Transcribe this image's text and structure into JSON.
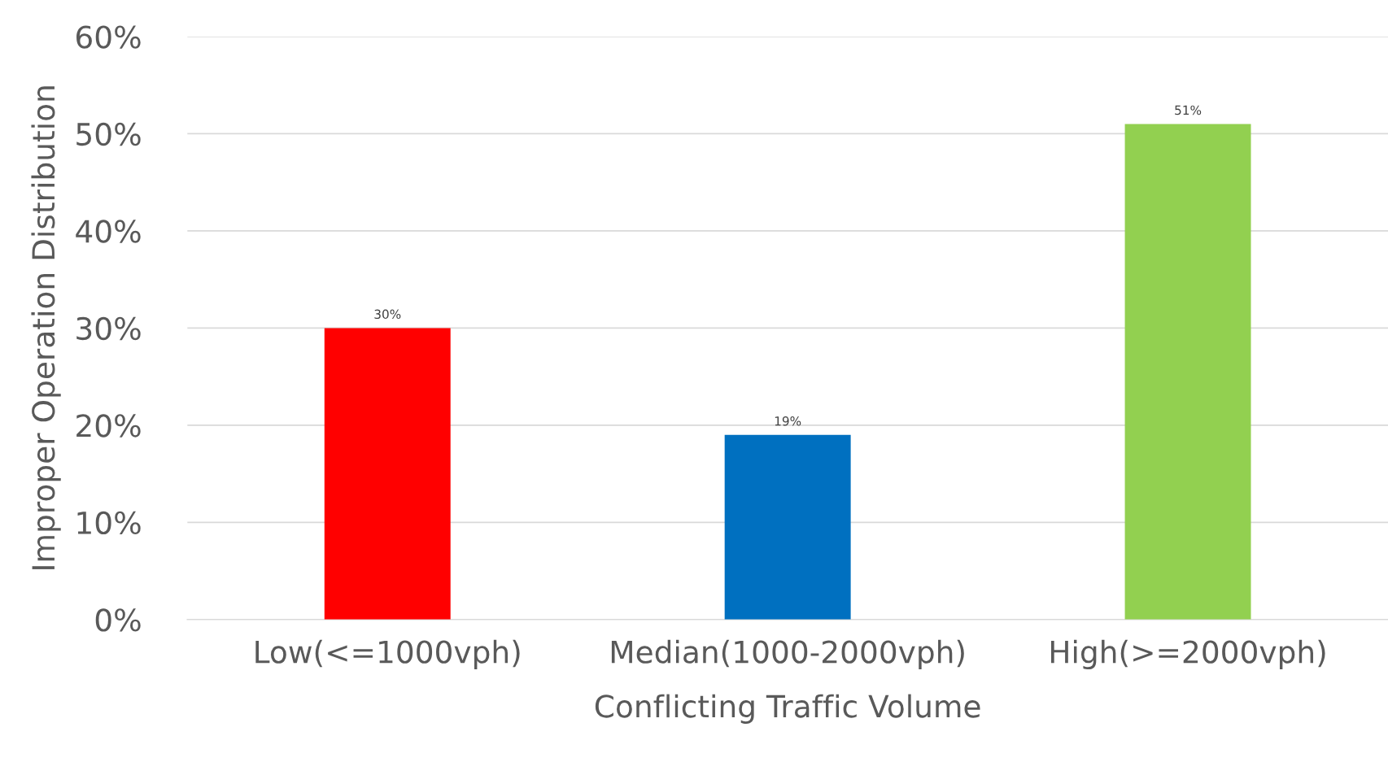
{
  "chart_data": {
    "type": "bar",
    "categories": [
      "Low(<=1000vph)",
      "Median(1000-2000vph)",
      "High(>=2000vph)"
    ],
    "values": [
      30,
      19,
      51
    ],
    "colors": [
      "#ff0000",
      "#0070c0",
      "#92d050"
    ],
    "value_labels": [
      "30%",
      "19%",
      "51%"
    ],
    "xlabel": "Conflicting Traffic Volume",
    "ylabel": "Improper Operation Distribution",
    "ylim": [
      0,
      60
    ],
    "yticks": [
      {
        "value": 0,
        "label": "0%"
      },
      {
        "value": 10,
        "label": "10%"
      },
      {
        "value": 20,
        "label": "20%"
      },
      {
        "value": 30,
        "label": "30%"
      },
      {
        "value": 40,
        "label": "40%"
      },
      {
        "value": 50,
        "label": "50%"
      },
      {
        "value": 60,
        "label": "60%"
      }
    ],
    "grid": "y"
  }
}
